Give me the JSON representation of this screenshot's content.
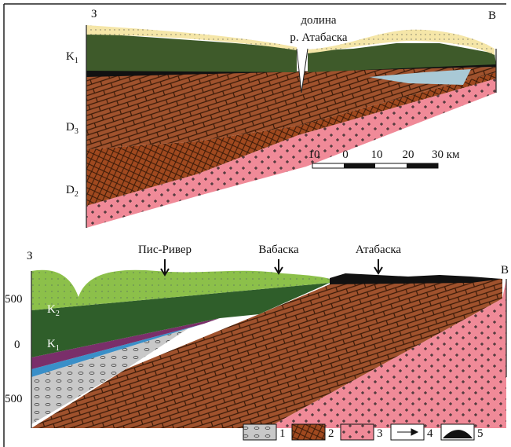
{
  "top_section": {
    "west": "З",
    "east": "В",
    "valley": [
      "долина",
      "р. Атабаска"
    ],
    "layers": [
      {
        "label": "K",
        "sub": "1"
      },
      {
        "label": "D",
        "sub": "3"
      },
      {
        "label": "D",
        "sub": "2"
      }
    ],
    "scale": [
      "10",
      "0",
      "10",
      "20",
      "30 км"
    ]
  },
  "bottom_section": {
    "west": "З",
    "east": "В",
    "places": [
      "Пис-Ривер",
      "Вабаска",
      "Атабаска"
    ],
    "depths": [
      "500",
      "0",
      "500"
    ],
    "layers": [
      {
        "label": "K",
        "sub": "2"
      },
      {
        "label": "K",
        "sub": "1"
      }
    ]
  },
  "legend": [
    "1",
    "2",
    "3",
    "4",
    "5"
  ]
}
